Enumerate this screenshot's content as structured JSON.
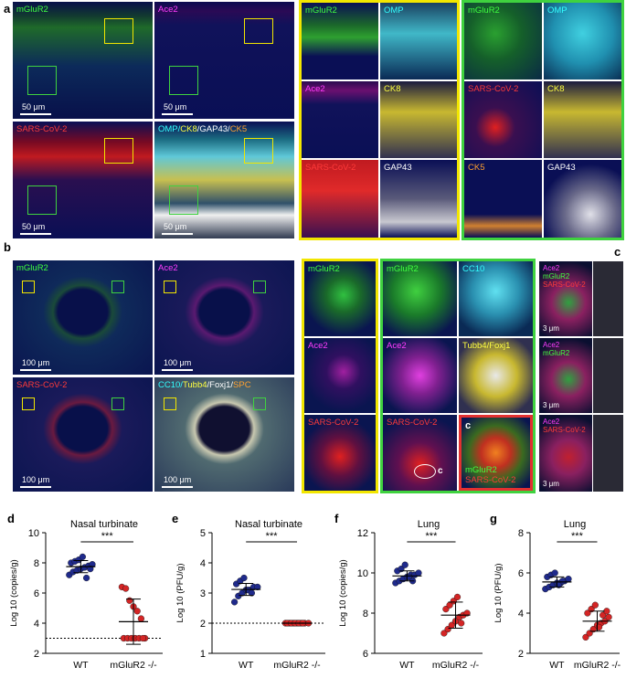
{
  "panel_letters": {
    "a": "a",
    "b": "b",
    "c": "c",
    "d": "d",
    "e": "e",
    "f": "f",
    "g": "g"
  },
  "panel_a": {
    "tiles": [
      "mGluR2",
      "Ace2",
      "SARS-CoV-2"
    ],
    "merge_label": {
      "omp": "OMP/",
      "ck8": "CK8",
      "gap": "/GAP43/",
      "ck5": "CK5"
    },
    "scale": "50 μm",
    "zoom_yellow": [
      "mGluR2",
      "OMP",
      "Ace2",
      "CK8",
      "SARS-CoV-2",
      "GAP43"
    ],
    "zoom_green": [
      "mGluR2",
      "OMP",
      "SARS-CoV-2",
      "CK8",
      "CK5",
      "GAP43"
    ]
  },
  "panel_b": {
    "tiles": [
      "mGluR2",
      "Ace2",
      "SARS-CoV-2"
    ],
    "merge_label": {
      "cc10": "CC10/",
      "tubb": "Tubb4",
      "foxj": "/Foxj1/",
      "spc": "SPC"
    },
    "scale": "100 μm",
    "zoom_yellow": [
      "mGluR2",
      "Ace2",
      "SARS-CoV-2"
    ],
    "zoom_green": [
      "mGluR2",
      "CC10",
      "Ace2",
      "Tubb4/Foxj1",
      "SARS-CoV-2",
      "c"
    ],
    "zoom_red": {
      "letter": "c",
      "l1": "mGluR2",
      "l2": "SARS-CoV-2"
    }
  },
  "panel_c": {
    "rows": [
      {
        "l1": "Ace2",
        "l2": "mGluR2",
        "l3": "SARS-CoV-2"
      },
      {
        "l1": "Ace2",
        "l2": "mGluR2",
        "l3": ""
      },
      {
        "l1": "Ace2",
        "l2": "SARS-CoV-2",
        "l3": ""
      }
    ],
    "scale": "3 μm"
  },
  "significance": "***",
  "colors": {
    "wt": "#1f2a8c",
    "ko": "#d42525"
  },
  "chart_data": [
    {
      "type": "scatter",
      "title": "Nasal turbinate",
      "ylabel": "Log 10 (copies/g)",
      "categories": [
        "WT",
        "mGluR2 -/-"
      ],
      "ylim": [
        2,
        10
      ],
      "yticks": [
        2,
        4,
        6,
        8,
        10
      ],
      "threshold": 3,
      "series": [
        {
          "values": [
            7.2,
            7.4,
            7.5,
            7.6,
            7.7,
            7.8,
            7.9,
            8.0,
            8.1,
            8.2,
            8.4,
            7.0,
            7.6
          ],
          "mean": 7.75,
          "sd": 0.4
        },
        {
          "values": [
            6.4,
            6.3,
            5.5,
            5.1,
            4.8,
            4.3,
            3.0,
            3.0,
            3.0,
            3.0,
            3.0,
            3.0,
            3.0
          ],
          "mean": 4.1,
          "sd": 1.5
        }
      ]
    },
    {
      "type": "scatter",
      "title": "Nasal turbinate",
      "ylabel": "Log 10 (PFU/g)",
      "categories": [
        "WT",
        "mGluR2 -/-"
      ],
      "ylim": [
        1,
        5
      ],
      "yticks": [
        1,
        2,
        3,
        4,
        5
      ],
      "threshold": 2,
      "series": [
        {
          "values": [
            2.7,
            2.9,
            3.0,
            3.1,
            3.1,
            3.2,
            3.2,
            3.3,
            3.4,
            3.5,
            3.1,
            3.0
          ],
          "mean": 3.12,
          "sd": 0.2
        },
        {
          "values": [
            2,
            2,
            2,
            2,
            2,
            2,
            2,
            2,
            2,
            2,
            2,
            2
          ],
          "mean": 2.0,
          "sd": 0.0
        }
      ]
    },
    {
      "type": "scatter",
      "title": "Lung",
      "ylabel": "Log 10 (copies/g)",
      "categories": [
        "WT",
        "mGluR2 -/-"
      ],
      "ylim": [
        6,
        12
      ],
      "yticks": [
        6,
        8,
        10,
        12
      ],
      "threshold": null,
      "series": [
        {
          "values": [
            9.5,
            9.6,
            9.7,
            9.8,
            9.9,
            9.9,
            10.0,
            10.1,
            10.2,
            10.4,
            9.8,
            9.6
          ],
          "mean": 9.85,
          "sd": 0.25
        },
        {
          "values": [
            7.0,
            7.2,
            7.4,
            7.6,
            7.8,
            7.9,
            8.0,
            8.2,
            8.4,
            8.6,
            8.8,
            7.5
          ],
          "mean": 7.9,
          "sd": 0.65
        }
      ]
    },
    {
      "type": "scatter",
      "title": "Lung",
      "ylabel": "Log 10 (PFU/g)",
      "categories": [
        "WT",
        "mGluR2 -/-"
      ],
      "ylim": [
        2,
        8
      ],
      "yticks": [
        2,
        4,
        6,
        8
      ],
      "threshold": null,
      "series": [
        {
          "values": [
            5.2,
            5.3,
            5.4,
            5.5,
            5.5,
            5.6,
            5.7,
            5.8,
            5.9,
            6.0,
            5.4,
            5.6
          ],
          "mean": 5.55,
          "sd": 0.25
        },
        {
          "values": [
            2.8,
            3.0,
            3.2,
            3.4,
            3.5,
            3.6,
            3.8,
            4.0,
            4.2,
            4.4,
            3.3,
            3.9,
            4.1
          ],
          "mean": 3.6,
          "sd": 0.5
        }
      ]
    }
  ]
}
